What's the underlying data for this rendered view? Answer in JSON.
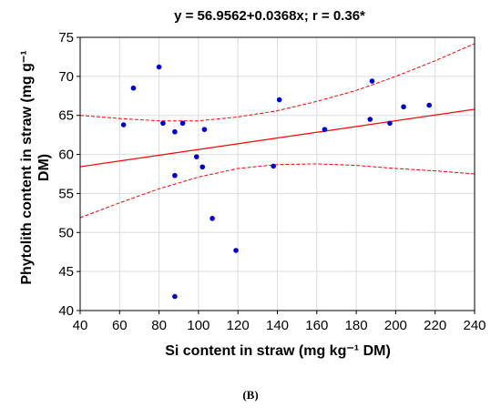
{
  "chart_data": {
    "type": "scatter",
    "title": "y = 56.9562+0.0368x; r = 0.36*",
    "xlabel": "Si content in straw (mg kg⁻¹ DM)",
    "ylabel_line1": "Phytolith content in straw (mg g⁻¹",
    "ylabel_line2": "DM)",
    "panel_label": "(B)",
    "xlim": [
      40,
      240
    ],
    "ylim": [
      40,
      75
    ],
    "x_ticks": [
      "40",
      "60",
      "80",
      "100",
      "120",
      "140",
      "160",
      "180",
      "200",
      "220",
      "240"
    ],
    "y_ticks": [
      "40",
      "45",
      "50",
      "55",
      "60",
      "65",
      "70",
      "75"
    ],
    "grid": true,
    "point_color": "#0000cc",
    "fit_color": "#ff0000",
    "regression": {
      "intercept": 56.9562,
      "slope": 0.0368
    },
    "confidence_band": {
      "x": [
        40,
        60,
        80,
        100,
        120,
        140,
        160,
        180,
        200,
        220,
        240
      ],
      "upper": [
        65.0,
        64.6,
        64.3,
        64.3,
        64.8,
        65.6,
        66.8,
        68.2,
        70.0,
        72.0,
        74.2
      ],
      "lower": [
        51.9,
        53.8,
        55.6,
        57.1,
        58.2,
        58.7,
        58.8,
        58.6,
        58.2,
        57.9,
        57.5
      ]
    },
    "points": [
      {
        "x": 62,
        "y": 63.8
      },
      {
        "x": 67,
        "y": 68.5
      },
      {
        "x": 80,
        "y": 71.2
      },
      {
        "x": 82,
        "y": 64.0
      },
      {
        "x": 88,
        "y": 62.9
      },
      {
        "x": 88,
        "y": 57.3
      },
      {
        "x": 88,
        "y": 41.8
      },
      {
        "x": 92,
        "y": 64.0
      },
      {
        "x": 99,
        "y": 59.7
      },
      {
        "x": 102,
        "y": 58.4
      },
      {
        "x": 103,
        "y": 63.2
      },
      {
        "x": 107,
        "y": 51.8
      },
      {
        "x": 119,
        "y": 47.7
      },
      {
        "x": 138,
        "y": 58.5
      },
      {
        "x": 141,
        "y": 67.0
      },
      {
        "x": 164,
        "y": 63.2
      },
      {
        "x": 187,
        "y": 64.5
      },
      {
        "x": 188,
        "y": 69.4
      },
      {
        "x": 197,
        "y": 64.0
      },
      {
        "x": 204,
        "y": 66.1
      },
      {
        "x": 217,
        "y": 66.3
      }
    ]
  }
}
